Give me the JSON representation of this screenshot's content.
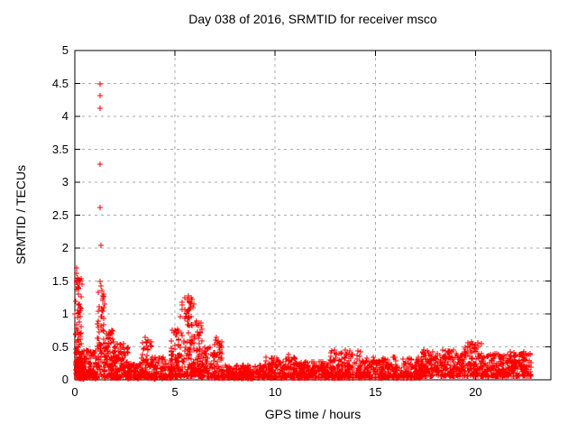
{
  "chart_data": {
    "type": "scatter",
    "title": "Day 038 of 2016, SRMTID for receiver msco",
    "xlabel": "GPS time / hours",
    "ylabel": "SRMTID / TECUs",
    "xlim": [
      0,
      23.76
    ],
    "ylim": [
      0,
      5
    ],
    "xticks": [
      0,
      5,
      10,
      15,
      20
    ],
    "xtick_labels": [
      "0",
      "5",
      "10",
      "15",
      "20"
    ],
    "yticks": [
      0,
      0.5,
      1,
      1.5,
      2,
      2.5,
      3,
      3.5,
      4,
      4.5,
      5
    ],
    "ytick_labels": [
      "0",
      "0.5",
      "1",
      "1.5",
      "2",
      "2.5",
      "3",
      "3.5",
      "4",
      "4.5",
      "5"
    ],
    "grid": true,
    "legend_position": "none",
    "colors": {
      "marker": "#ff0000",
      "axis": "#000000",
      "grid": "#aaaaaa",
      "background": "#ffffff"
    },
    "series": [
      {
        "name": "SRMTID",
        "marker": "plus",
        "color": "#ff0000",
        "x_start": 0.02,
        "x_end": 22.8,
        "outlier_points": [
          [
            0.08,
            1.62
          ],
          [
            0.1,
            1.7
          ],
          [
            0.12,
            1.55
          ],
          [
            0.15,
            1.45
          ],
          [
            0.18,
            1.3
          ],
          [
            0.22,
            1.15
          ],
          [
            0.28,
            1.05
          ],
          [
            1.26,
            4.5
          ],
          [
            1.28,
            4.31
          ],
          [
            1.27,
            4.12
          ],
          [
            1.27,
            3.28
          ],
          [
            1.28,
            2.61
          ],
          [
            1.29,
            2.04
          ],
          [
            1.24,
            1.5
          ],
          [
            1.3,
            1.42
          ],
          [
            1.35,
            1.35
          ],
          [
            1.38,
            1.28
          ],
          [
            1.41,
            1.2
          ],
          [
            1.36,
            1.08
          ],
          [
            1.33,
            0.96
          ],
          [
            3.52,
            0.65
          ],
          [
            3.55,
            0.58
          ],
          [
            4.98,
            0.75
          ],
          [
            5.05,
            0.68
          ],
          [
            5.62,
            1.22
          ],
          [
            5.68,
            1.28
          ],
          [
            5.73,
            1.18
          ],
          [
            5.78,
            1.1
          ],
          [
            7.08,
            0.65
          ],
          [
            7.12,
            0.56
          ],
          [
            10.68,
            0.38
          ],
          [
            13.52,
            0.45
          ],
          [
            17.42,
            0.4
          ],
          [
            19.78,
            0.58
          ],
          [
            19.84,
            0.52
          ],
          [
            22.42,
            0.42
          ]
        ],
        "dense_segments": [
          {
            "x0": 0.02,
            "x1": 0.35,
            "ymin": 0.03,
            "ymax": 1.55,
            "n": 80,
            "skew": 1.3
          },
          {
            "x0": 0.05,
            "x1": 0.5,
            "ymin": 0.02,
            "ymax": 0.45,
            "n": 70,
            "skew": 1.8
          },
          {
            "x0": 0.35,
            "x1": 1.15,
            "ymin": 0.02,
            "ymax": 0.45,
            "n": 120,
            "skew": 2.0
          },
          {
            "x0": 1.1,
            "x1": 1.5,
            "ymin": 0.05,
            "ymax": 1.4,
            "n": 60,
            "skew": 1.5
          },
          {
            "x0": 1.45,
            "x1": 2.05,
            "ymin": 0.03,
            "ymax": 0.75,
            "n": 110,
            "skew": 2.0
          },
          {
            "x0": 2.0,
            "x1": 2.65,
            "ymin": 0.03,
            "ymax": 0.55,
            "n": 90,
            "skew": 2.0
          },
          {
            "x0": 2.6,
            "x1": 3.35,
            "ymin": 0.02,
            "ymax": 0.25,
            "n": 80,
            "skew": 1.6
          },
          {
            "x0": 3.3,
            "x1": 3.85,
            "ymin": 0.03,
            "ymax": 0.62,
            "n": 80,
            "skew": 2.0
          },
          {
            "x0": 3.8,
            "x1": 4.85,
            "ymin": 0.02,
            "ymax": 0.35,
            "n": 120,
            "skew": 1.8
          },
          {
            "x0": 4.8,
            "x1": 5.3,
            "ymin": 0.04,
            "ymax": 0.8,
            "n": 90,
            "skew": 2.0
          },
          {
            "x0": 5.25,
            "x1": 5.95,
            "ymin": 0.05,
            "ymax": 1.25,
            "n": 130,
            "skew": 2.2
          },
          {
            "x0": 5.9,
            "x1": 6.35,
            "ymin": 0.05,
            "ymax": 0.92,
            "n": 80,
            "skew": 2.2
          },
          {
            "x0": 6.3,
            "x1": 7.0,
            "ymin": 0.03,
            "ymax": 0.5,
            "n": 80,
            "skew": 2.0
          },
          {
            "x0": 6.95,
            "x1": 7.35,
            "ymin": 0.03,
            "ymax": 0.6,
            "n": 50,
            "skew": 2.0
          },
          {
            "x0": 7.3,
            "x1": 9.5,
            "ymin": 0.02,
            "ymax": 0.22,
            "n": 230,
            "skew": 1.5
          },
          {
            "x0": 9.5,
            "x1": 11.0,
            "ymin": 0.03,
            "ymax": 0.35,
            "n": 170,
            "skew": 1.8
          },
          {
            "x0": 11.0,
            "x1": 12.7,
            "ymin": 0.03,
            "ymax": 0.28,
            "n": 190,
            "skew": 1.6
          },
          {
            "x0": 12.7,
            "x1": 14.3,
            "ymin": 0.03,
            "ymax": 0.45,
            "n": 180,
            "skew": 2.0
          },
          {
            "x0": 14.3,
            "x1": 17.3,
            "ymin": 0.03,
            "ymax": 0.35,
            "n": 330,
            "skew": 1.8
          },
          {
            "x0": 17.3,
            "x1": 19.4,
            "ymin": 0.05,
            "ymax": 0.46,
            "n": 240,
            "skew": 1.7
          },
          {
            "x0": 19.4,
            "x1": 20.3,
            "ymin": 0.05,
            "ymax": 0.56,
            "n": 110,
            "skew": 1.6
          },
          {
            "x0": 20.3,
            "x1": 21.6,
            "ymin": 0.04,
            "ymax": 0.4,
            "n": 150,
            "skew": 1.7
          },
          {
            "x0": 21.6,
            "x1": 22.8,
            "ymin": 0.05,
            "ymax": 0.42,
            "n": 140,
            "skew": 1.5
          }
        ]
      }
    ]
  }
}
